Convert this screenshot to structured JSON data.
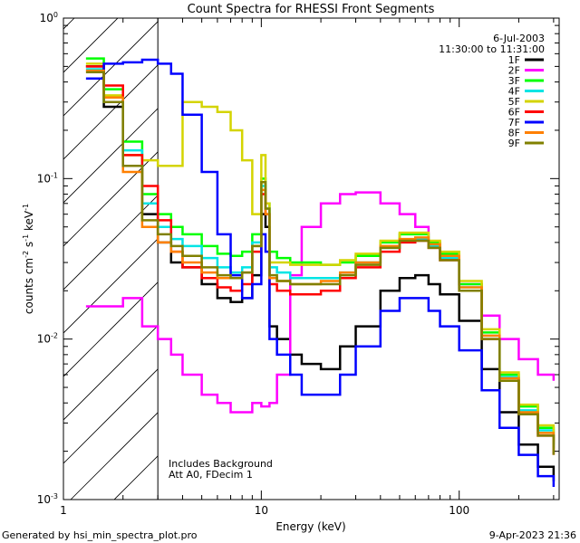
{
  "chart_data": {
    "type": "line",
    "title": "Count Spectra for RHESSI Front Segments",
    "xlabel": "Energy (keV)",
    "ylabel_main": "counts cm",
    "ylabel_sup1": "-2",
    "ylabel_mid": " s",
    "ylabel_sup2": "-1",
    "ylabel_end": " keV",
    "ylabel_sup3": "-1",
    "x_scale": "log",
    "y_scale": "log",
    "xlim": [
      1,
      320
    ],
    "ylim": [
      0.001,
      1.0
    ],
    "x_ticks": [
      {
        "value": 1,
        "label": "1"
      },
      {
        "value": 10,
        "label": "10"
      },
      {
        "value": 100,
        "label": "100"
      }
    ],
    "y_ticks": [
      {
        "value": 0.001,
        "base": "10",
        "exp": "-3"
      },
      {
        "value": 0.01,
        "base": "10",
        "exp": "-2"
      },
      {
        "value": 0.1,
        "base": "10",
        "exp": "-1"
      },
      {
        "value": 1.0,
        "base": "10",
        "exp": "0"
      }
    ],
    "hatch_region_xmax": 3,
    "date": "6-Jul-2003",
    "time_range": "11:30:00 to 11:31:00",
    "annotation_line1": "Includes Background",
    "annotation_line2": "Att A0, FDecim 1",
    "footer_left": "Generated by hsi_min_spectra_plot.pro",
    "footer_right": "9-Apr-2023 21:36",
    "series": [
      {
        "name": "1F",
        "color": "#000000",
        "x": [
          1.3,
          1.6,
          2.0,
          2.5,
          3.0,
          3.5,
          4.0,
          5.0,
          6.0,
          7.0,
          8.0,
          9.0,
          10.0,
          10.5,
          11.0,
          12.0,
          14.0,
          16.0,
          20.0,
          25.0,
          30.0,
          40.0,
          50.0,
          60.0,
          70.0,
          80.0,
          100.0,
          130.0,
          160.0,
          200.0,
          250.0,
          300.0
        ],
        "y": [
          0.5,
          0.28,
          0.12,
          0.06,
          0.04,
          0.03,
          0.028,
          0.022,
          0.018,
          0.017,
          0.018,
          0.025,
          0.06,
          0.05,
          0.012,
          0.01,
          0.008,
          0.007,
          0.0065,
          0.009,
          0.012,
          0.02,
          0.024,
          0.025,
          0.022,
          0.019,
          0.013,
          0.0065,
          0.0035,
          0.0022,
          0.0016,
          0.0013
        ]
      },
      {
        "name": "2F",
        "color": "#ff00ff",
        "x": [
          1.3,
          1.6,
          2.0,
          2.5,
          3.0,
          3.5,
          4.0,
          5.0,
          6.0,
          7.0,
          8.0,
          9.0,
          10.0,
          10.5,
          11.0,
          12.0,
          14.0,
          16.0,
          20.0,
          25.0,
          30.0,
          40.0,
          50.0,
          60.0,
          70.0,
          80.0,
          100.0,
          130.0,
          160.0,
          200.0,
          250.0,
          300.0
        ],
        "y": [
          0.016,
          0.016,
          0.018,
          0.012,
          0.01,
          0.008,
          0.006,
          0.0045,
          0.004,
          0.0035,
          0.0035,
          0.004,
          0.0038,
          0.0038,
          0.004,
          0.006,
          0.025,
          0.05,
          0.07,
          0.08,
          0.082,
          0.07,
          0.06,
          0.05,
          0.04,
          0.032,
          0.022,
          0.014,
          0.01,
          0.0075,
          0.006,
          0.0055
        ]
      },
      {
        "name": "3F",
        "color": "#00ff00",
        "x": [
          1.3,
          1.6,
          2.0,
          2.5,
          3.0,
          3.5,
          4.0,
          5.0,
          6.0,
          7.0,
          8.0,
          9.0,
          10.0,
          10.5,
          11.0,
          12.0,
          14.0,
          16.0,
          20.0,
          25.0,
          30.0,
          40.0,
          50.0,
          60.0,
          70.0,
          80.0,
          100.0,
          130.0,
          160.0,
          200.0,
          250.0,
          300.0
        ],
        "y": [
          0.56,
          0.36,
          0.17,
          0.08,
          0.06,
          0.05,
          0.045,
          0.038,
          0.034,
          0.033,
          0.035,
          0.045,
          0.1,
          0.07,
          0.035,
          0.032,
          0.03,
          0.03,
          0.029,
          0.03,
          0.033,
          0.04,
          0.045,
          0.045,
          0.04,
          0.034,
          0.022,
          0.011,
          0.006,
          0.0038,
          0.0028,
          0.0022
        ]
      },
      {
        "name": "4F",
        "color": "#00e5e5",
        "x": [
          1.3,
          1.6,
          2.0,
          2.5,
          3.0,
          3.5,
          4.0,
          5.0,
          6.0,
          7.0,
          8.0,
          9.0,
          10.0,
          10.5,
          11.0,
          12.0,
          14.0,
          16.0,
          20.0,
          25.0,
          30.0,
          40.0,
          50.0,
          60.0,
          70.0,
          80.0,
          100.0,
          130.0,
          160.0,
          200.0,
          250.0,
          300.0
        ],
        "y": [
          0.48,
          0.3,
          0.15,
          0.07,
          0.05,
          0.042,
          0.038,
          0.032,
          0.028,
          0.026,
          0.028,
          0.04,
          0.09,
          0.065,
          0.028,
          0.026,
          0.024,
          0.024,
          0.024,
          0.026,
          0.03,
          0.037,
          0.041,
          0.042,
          0.038,
          0.032,
          0.021,
          0.0105,
          0.0058,
          0.0036,
          0.0027,
          0.0021
        ]
      },
      {
        "name": "5F",
        "color": "#d4d400",
        "x": [
          1.3,
          1.6,
          2.0,
          2.5,
          3.0,
          3.5,
          4.0,
          5.0,
          6.0,
          7.0,
          8.0,
          9.0,
          10.0,
          10.5,
          11.0,
          12.0,
          14.0,
          16.0,
          20.0,
          25.0,
          30.0,
          40.0,
          50.0,
          60.0,
          70.0,
          80.0,
          100.0,
          130.0,
          160.0,
          200.0,
          250.0,
          300.0
        ],
        "y": [
          0.52,
          0.33,
          0.14,
          0.13,
          0.12,
          0.12,
          0.3,
          0.28,
          0.26,
          0.2,
          0.13,
          0.06,
          0.14,
          0.07,
          0.03,
          0.03,
          0.029,
          0.029,
          0.029,
          0.031,
          0.034,
          0.041,
          0.046,
          0.046,
          0.041,
          0.035,
          0.023,
          0.0115,
          0.0062,
          0.0039,
          0.0029,
          0.0023
        ]
      },
      {
        "name": "6F",
        "color": "#ff0000",
        "x": [
          1.3,
          1.6,
          2.0,
          2.5,
          3.0,
          3.5,
          4.0,
          5.0,
          6.0,
          7.0,
          8.0,
          9.0,
          10.0,
          10.5,
          11.0,
          12.0,
          14.0,
          16.0,
          20.0,
          25.0,
          30.0,
          40.0,
          50.0,
          60.0,
          70.0,
          80.0,
          100.0,
          130.0,
          160.0,
          200.0,
          250.0,
          300.0
        ],
        "y": [
          0.5,
          0.38,
          0.14,
          0.09,
          0.055,
          0.035,
          0.028,
          0.024,
          0.021,
          0.02,
          0.022,
          0.035,
          0.08,
          0.06,
          0.022,
          0.02,
          0.019,
          0.019,
          0.02,
          0.024,
          0.028,
          0.035,
          0.04,
          0.041,
          0.037,
          0.031,
          0.02,
          0.01,
          0.0055,
          0.0034,
          0.0025,
          0.0019
        ]
      },
      {
        "name": "7F",
        "color": "#0000ff",
        "x": [
          1.3,
          1.6,
          2.0,
          2.5,
          3.0,
          3.5,
          4.0,
          5.0,
          6.0,
          7.0,
          8.0,
          9.0,
          10.0,
          10.5,
          11.0,
          12.0,
          14.0,
          16.0,
          20.0,
          25.0,
          30.0,
          40.0,
          50.0,
          60.0,
          70.0,
          80.0,
          100.0,
          130.0,
          160.0,
          200.0,
          250.0,
          300.0
        ],
        "y": [
          0.42,
          0.52,
          0.53,
          0.55,
          0.52,
          0.45,
          0.25,
          0.11,
          0.045,
          0.025,
          0.018,
          0.022,
          0.045,
          0.035,
          0.01,
          0.008,
          0.006,
          0.0045,
          0.0045,
          0.006,
          0.009,
          0.015,
          0.018,
          0.018,
          0.015,
          0.012,
          0.0085,
          0.0048,
          0.0028,
          0.0019,
          0.0014,
          0.0012
        ]
      },
      {
        "name": "8F",
        "color": "#ff8000",
        "x": [
          1.3,
          1.6,
          2.0,
          2.5,
          3.0,
          3.5,
          4.0,
          5.0,
          6.0,
          7.0,
          8.0,
          9.0,
          10.0,
          10.5,
          11.0,
          12.0,
          14.0,
          16.0,
          20.0,
          25.0,
          30.0,
          40.0,
          50.0,
          60.0,
          70.0,
          80.0,
          100.0,
          130.0,
          160.0,
          200.0,
          250.0,
          300.0
        ],
        "y": [
          0.47,
          0.32,
          0.11,
          0.05,
          0.04,
          0.035,
          0.03,
          0.026,
          0.024,
          0.024,
          0.026,
          0.038,
          0.085,
          0.06,
          0.024,
          0.023,
          0.022,
          0.022,
          0.023,
          0.026,
          0.03,
          0.038,
          0.042,
          0.043,
          0.039,
          0.033,
          0.021,
          0.0105,
          0.0057,
          0.0035,
          0.0026,
          0.002
        ]
      },
      {
        "name": "9F",
        "color": "#808000",
        "x": [
          1.3,
          1.6,
          2.0,
          2.5,
          3.0,
          3.5,
          4.0,
          5.0,
          6.0,
          7.0,
          8.0,
          9.0,
          10.0,
          10.5,
          11.0,
          12.0,
          14.0,
          16.0,
          20.0,
          25.0,
          30.0,
          40.0,
          50.0,
          60.0,
          70.0,
          80.0,
          100.0,
          130.0,
          160.0,
          200.0,
          250.0,
          300.0
        ],
        "y": [
          0.46,
          0.3,
          0.12,
          0.055,
          0.045,
          0.038,
          0.033,
          0.028,
          0.025,
          0.024,
          0.026,
          0.038,
          0.095,
          0.065,
          0.025,
          0.023,
          0.022,
          0.022,
          0.022,
          0.025,
          0.029,
          0.037,
          0.041,
          0.041,
          0.037,
          0.031,
          0.02,
          0.01,
          0.0055,
          0.0034,
          0.0025,
          0.0019
        ]
      }
    ]
  }
}
